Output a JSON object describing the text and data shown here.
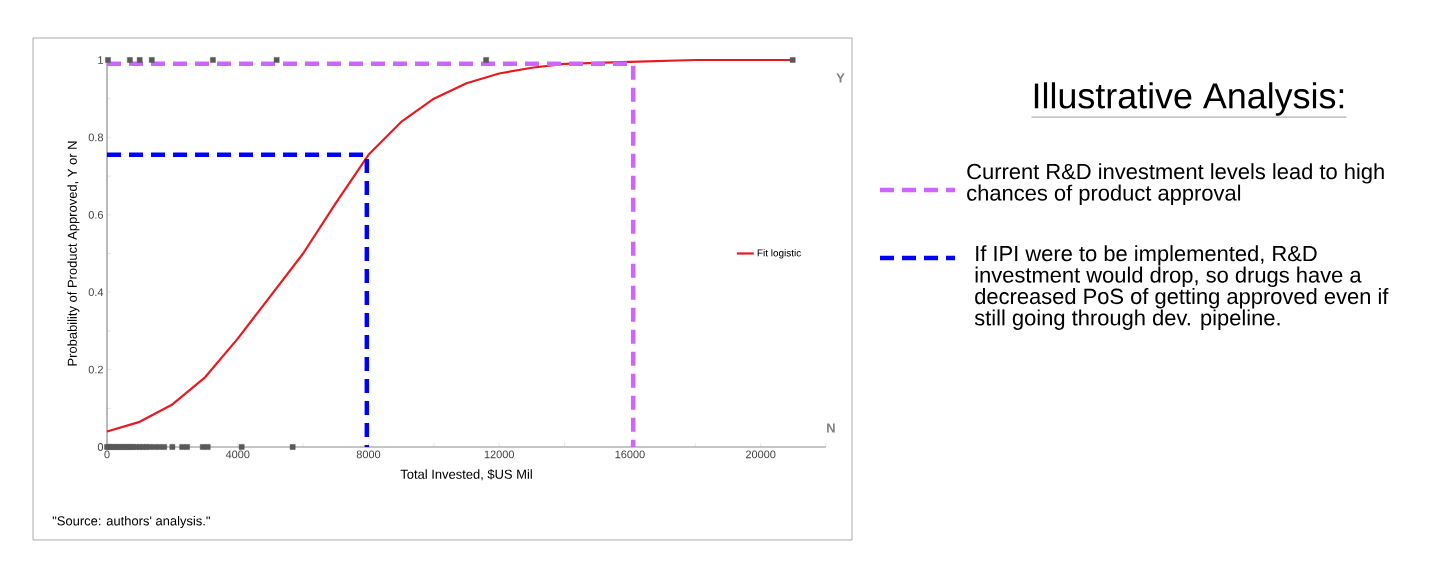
{
  "chart_data": {
    "type": "scatter",
    "title": "Illustrative Analysis:",
    "xlabel": "Total Invested, $US Mil",
    "ylabel": "Probability of Product Approved, Y or N",
    "annotations": [
      "Y",
      "N",
      "\"Source: authors' analysis.\""
    ],
    "xlim": [
      0,
      22000
    ],
    "ylim": [
      0,
      1
    ],
    "xticks": [
      0,
      {
        "value": 2000,
        "label": null
      },
      4000,
      {
        "value": 6000,
        "label": null
      },
      8000,
      {
        "value": 10000,
        "label": null
      },
      12000,
      {
        "value": 14000,
        "label": null
      },
      16000,
      {
        "value": 18000,
        "label": null
      },
      20000,
      {
        "value": 22000,
        "label": null
      }
    ],
    "yticks": [
      0,
      {
        "value": 0.1,
        "label": null
      },
      0.2,
      {
        "value": 0.3,
        "label": null
      },
      0.4,
      {
        "value": 0.5,
        "label": null
      },
      0.6,
      {
        "value": 0.7,
        "label": null
      },
      0.8,
      {
        "value": 0.9,
        "label": null
      },
      1
    ],
    "legend": "right",
    "series": [
      {
        "color": "#595959",
        "marker": "square",
        "x": [
          0,
          60,
          130,
          200,
          280,
          350,
          420,
          500,
          580,
          650,
          730,
          800,
          900,
          1000,
          1100,
          1200,
          1300,
          1450,
          1600,
          1750,
          2000,
          2300,
          2450,
          2930,
          3080,
          4120,
          5680,
          30,
          700,
          1000,
          1370,
          3240,
          5190,
          11600,
          20980
        ],
        "values": [
          0,
          0,
          0,
          0,
          0,
          0,
          0,
          0,
          0,
          0,
          0,
          0,
          0,
          0,
          0,
          0,
          0,
          0,
          0,
          0,
          0,
          0,
          0,
          0,
          0,
          0,
          0,
          1,
          1,
          1,
          1,
          1,
          1,
          1,
          1
        ]
      },
      {
        "type": "line",
        "name": "Fit logistic",
        "color": "#e8191f",
        "marker": "none",
        "line_style": "solid",
        "x": [
          0,
          1000,
          2000,
          3000,
          4000,
          5000,
          6000,
          7000,
          8000,
          9000,
          10000,
          11000,
          12000,
          13000,
          14000,
          16000,
          18000,
          21000
        ],
        "values": [
          0.04,
          0.065,
          0.11,
          0.18,
          0.28,
          0.39,
          0.5,
          0.63,
          0.755,
          0.84,
          0.9,
          0.94,
          0.965,
          0.98,
          0.99,
          0.995,
          1,
          1
        ]
      },
      {
        "type": "line",
        "name": "Current R&D investment levels lead to high chances of product approval",
        "color": "#cc66ff",
        "marker": "none",
        "line_style": "dashed",
        "x": [
          0,
          16100,
          16100
        ],
        "values": [
          0.99,
          0.99,
          0
        ]
      },
      {
        "type": "line",
        "name": "If IPI were to be implemented, R&D investment would drop, so drugs have a decreased PoS of getting approved even if still going through dev. pipeline.",
        "color": "#0000ff",
        "marker": "none",
        "line_style": "dashed",
        "x": [
          0,
          7950,
          7950
        ],
        "values": [
          0.755,
          0.755,
          0
        ]
      }
    ]
  }
}
